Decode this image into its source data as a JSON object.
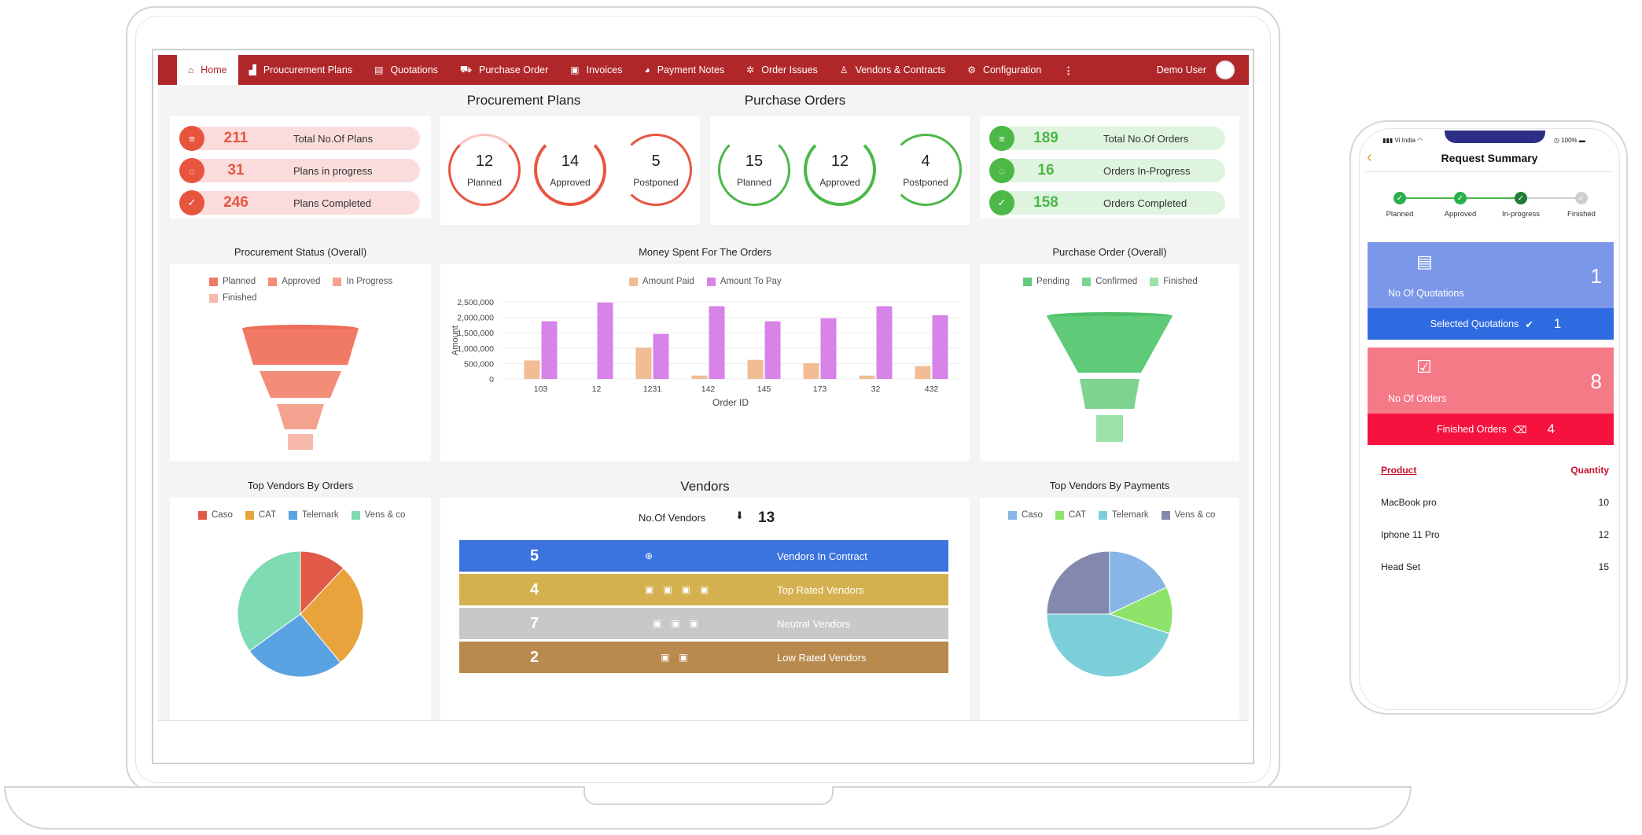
{
  "nav": {
    "items": [
      {
        "label": "Home",
        "icon": "home-icon",
        "glyph": "⌂"
      },
      {
        "label": "Proucurement Plans",
        "icon": "chart-icon",
        "glyph": "▟"
      },
      {
        "label": "Quotations",
        "icon": "document-icon",
        "glyph": "▤"
      },
      {
        "label": "Purchase Order",
        "icon": "truck-icon",
        "glyph": "⛟"
      },
      {
        "label": "Invoices",
        "icon": "invoice-icon",
        "glyph": "▣"
      },
      {
        "label": "Payment Notes",
        "icon": "palette-icon",
        "glyph": "◕"
      },
      {
        "label": "Order Issues",
        "icon": "bug-icon",
        "glyph": "✲"
      },
      {
        "label": "Vendors & Contracts",
        "icon": "person-icon",
        "glyph": "♙"
      },
      {
        "label": "Configuration",
        "icon": "gear-icon",
        "glyph": "⚙"
      }
    ],
    "more_glyph": "⋮",
    "user": "Demo User"
  },
  "procurement_plans": {
    "title": "Procurement Plans",
    "stats": [
      {
        "value": "211",
        "label": "Total No.Of Plans",
        "glyph": "≡"
      },
      {
        "value": "31",
        "label": "Plans in progress",
        "glyph": "◌"
      },
      {
        "value": "246",
        "label": "Plans Completed",
        "glyph": "✓"
      }
    ],
    "rings": [
      {
        "value": "12",
        "label": "Planned"
      },
      {
        "value": "14",
        "label": "Approved"
      },
      {
        "value": "5",
        "label": "Postponed"
      }
    ]
  },
  "purchase_orders": {
    "title": "Purchase Orders",
    "rings": [
      {
        "value": "15",
        "label": "Planned"
      },
      {
        "value": "12",
        "label": "Approved"
      },
      {
        "value": "4",
        "label": "Postponed"
      }
    ],
    "stats": [
      {
        "value": "189",
        "label": "Total No.Of Orders",
        "glyph": "≡"
      },
      {
        "value": "16",
        "label": "Orders In-Progress",
        "glyph": "◌"
      },
      {
        "value": "158",
        "label": "Orders Completed",
        "glyph": "✓"
      }
    ]
  },
  "colors": {
    "red": "#e8553f",
    "red_light": "#fbdcdc",
    "green": "#4cb848",
    "green_light": "#dff4df",
    "nav": "#b0272a"
  },
  "procurement_status": {
    "title": "Procurement Status (Overall)",
    "legend": [
      {
        "label": "Planned",
        "color": "#f07a66"
      },
      {
        "label": "Approved",
        "color": "#f28d78"
      },
      {
        "label": "In Progress",
        "color": "#f4a290"
      },
      {
        "label": "Finished",
        "color": "#f7b9ab"
      }
    ]
  },
  "purchase_order_overall": {
    "title": "Purchase Order (Overall)",
    "legend": [
      {
        "label": "Pending",
        "color": "#5fcb79"
      },
      {
        "label": "Confirmed",
        "color": "#7ed48f"
      },
      {
        "label": "Finished",
        "color": "#9de0a8"
      }
    ]
  },
  "chart_data": [
    {
      "type": "bar",
      "title": "Money Spent For The Orders",
      "xlabel": "Order ID",
      "ylabel": "Amount",
      "categories": [
        "103",
        "12",
        "1231",
        "142",
        "145",
        "173",
        "32",
        "432"
      ],
      "series": [
        {
          "name": "Amount Paid",
          "color": "#f2bc94",
          "values": [
            600000,
            0,
            1020000,
            110000,
            620000,
            510000,
            110000,
            420000
          ]
        },
        {
          "name": "Amount To Pay",
          "color": "#d783e8",
          "values": [
            1870000,
            2480000,
            1460000,
            2360000,
            1870000,
            1970000,
            2360000,
            2070000
          ]
        }
      ],
      "ylim": [
        0,
        2500000
      ],
      "yticks": [
        "0",
        "500,000",
        "1,000,000",
        "1,500,000",
        "2,000,000",
        "2,500,000"
      ]
    },
    {
      "type": "pie",
      "title": "Top Vendors By Orders",
      "labels": [
        "Caso",
        "CAT",
        "Telemark",
        "Vens & co"
      ],
      "values": [
        12,
        27,
        26,
        35
      ],
      "colors": [
        "#e05a47",
        "#e8a33d",
        "#5aa3e3",
        "#7fdbb4"
      ]
    },
    {
      "type": "pie",
      "title": "Top Vendors By Payments",
      "labels": [
        "Caso",
        "CAT",
        "Telemark",
        "Vens & co"
      ],
      "values": [
        18,
        12,
        45,
        25
      ],
      "colors": [
        "#87b6e6",
        "#8ee36a",
        "#7ccfd9",
        "#8389ae"
      ]
    }
  ],
  "vendors": {
    "title": "Vendors",
    "count_label": "No.Of Vendors",
    "count": "13",
    "bars": [
      {
        "value": "5",
        "label": "Vendors In Contract",
        "color": "#3b74de",
        "glyphs": "⊕"
      },
      {
        "value": "4",
        "label": "Top Rated Vendors",
        "color": "#d4b04f",
        "glyphs": "▣▣▣▣"
      },
      {
        "value": "7",
        "label": "Neutral Vendors",
        "color": "#c8c8c8",
        "glyphs": "▣▣▣"
      },
      {
        "value": "2",
        "label": "Low Rated Vendors",
        "color": "#b88a4e",
        "glyphs": "▣▣"
      }
    ]
  },
  "phone": {
    "carrier": "Vi India",
    "battery": "100%",
    "title": "Request Summary",
    "steps": [
      "Planned",
      "Approved",
      "In-progress",
      "Finished"
    ],
    "quotations": {
      "label": "No Of Quotations",
      "value": "1",
      "foot_label": "Selected Quotations",
      "foot_value": "1"
    },
    "orders": {
      "label": "No Of Orders",
      "value": "8",
      "foot_label": "Finished Orders",
      "foot_value": "4"
    },
    "table": {
      "headers": [
        "Product",
        "Quantity"
      ],
      "rows": [
        {
          "product": "MacBook pro",
          "qty": "10"
        },
        {
          "product": "Iphone 11 Pro",
          "qty": "12"
        },
        {
          "product": "Head Set",
          "qty": "15"
        }
      ]
    }
  }
}
